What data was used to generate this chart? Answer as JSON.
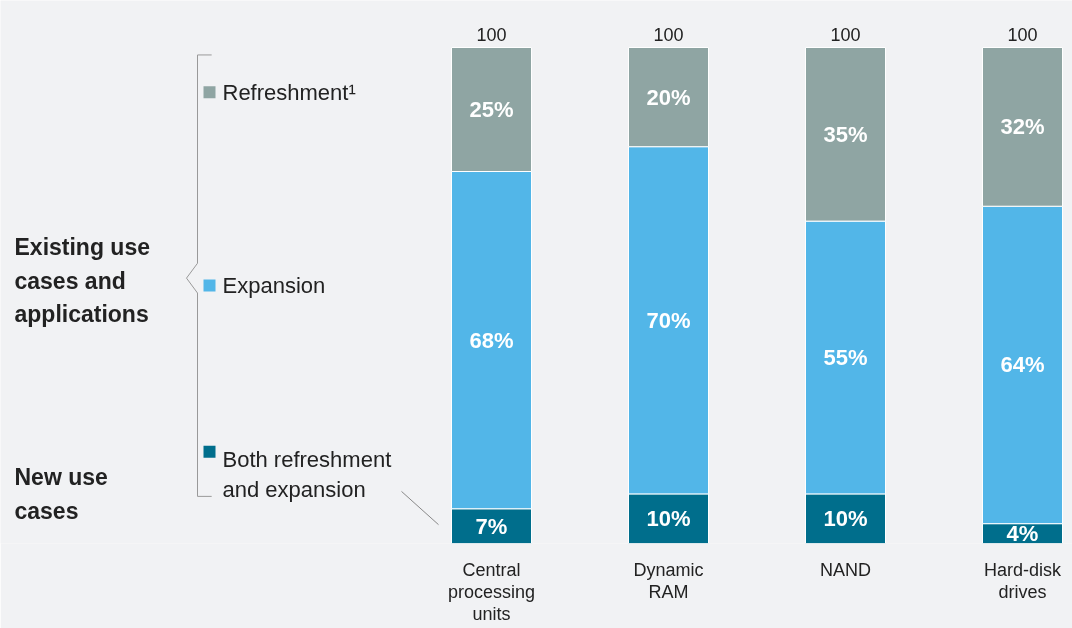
{
  "chart_data": {
    "type": "bar",
    "stacked": true,
    "categories": [
      "Central processing units",
      "Dynamic RAM",
      "NAND",
      "Hard-disk drives"
    ],
    "series": [
      {
        "name": "Both refreshment and expansion",
        "color": "#006e8c",
        "values": [
          7,
          10,
          10,
          4
        ],
        "value_labels": [
          "7%",
          "10%",
          "10%",
          "4%"
        ]
      },
      {
        "name": "Expansion",
        "color": "#52b6e8",
        "values": [
          68,
          70,
          55,
          64
        ],
        "value_labels": [
          "68%",
          "70%",
          "55%",
          "64%"
        ]
      },
      {
        "name": "Refreshment¹",
        "color": "#8fa5a3",
        "values": [
          25,
          20,
          35,
          32
        ],
        "value_labels": [
          "25%",
          "20%",
          "35%",
          "32%"
        ]
      }
    ],
    "totals": [
      "100",
      "100",
      "100",
      "100"
    ],
    "ylim": [
      0,
      100
    ],
    "tick_labels": "x",
    "legend": "left",
    "annotations": [
      "Existing use cases and applications",
      "New use cases"
    ]
  }
}
